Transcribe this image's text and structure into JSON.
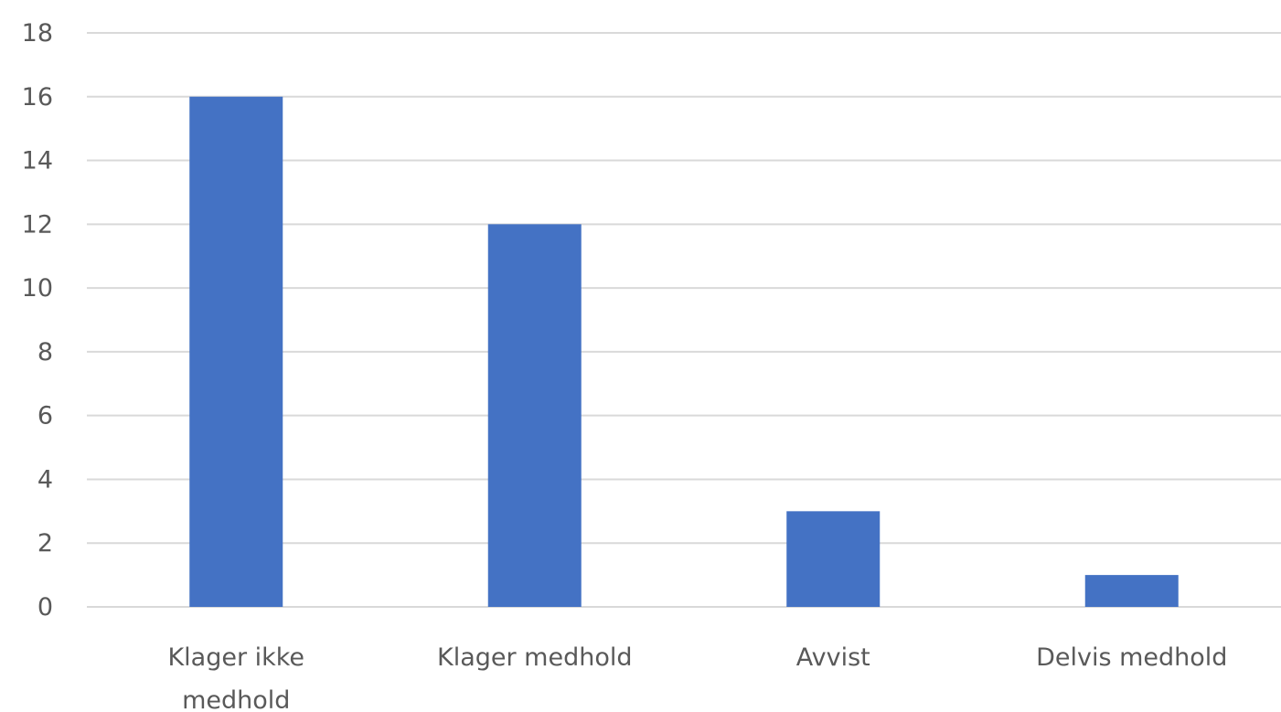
{
  "chart_data": {
    "type": "bar",
    "title": "",
    "xlabel": "",
    "ylabel": "",
    "categories": [
      [
        "Klager ikke",
        "medhold"
      ],
      [
        "Klager medhold"
      ],
      [
        "Avvist"
      ],
      [
        "Delvis medhold"
      ]
    ],
    "values": [
      16,
      12,
      3,
      1
    ],
    "ylim": [
      0,
      18
    ],
    "yticks": [
      0,
      2,
      4,
      6,
      8,
      10,
      12,
      14,
      16,
      18
    ],
    "grid": true,
    "legend": "none",
    "colors": {
      "bar": "#4472C4",
      "grid": "#D9D9D9",
      "text": "#595959"
    }
  }
}
